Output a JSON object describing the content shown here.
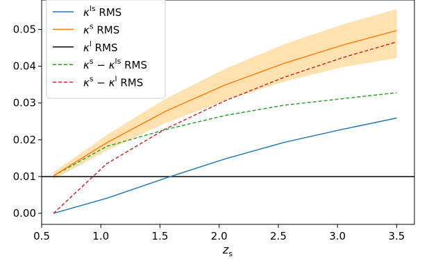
{
  "chart_data": {
    "type": "line",
    "xlabel": "z_s",
    "ylabel": "",
    "xlim": [
      0.5,
      3.65
    ],
    "ylim": [
      -0.003,
      0.058
    ],
    "xticks": [
      "0.5",
      "1.0",
      "1.5",
      "2.0",
      "2.5",
      "3.0",
      "3.5"
    ],
    "yticks": [
      "0.00",
      "0.01",
      "0.02",
      "0.03",
      "0.04",
      "0.05"
    ],
    "legend_position": "top-left",
    "grid": false,
    "x": [
      0.6,
      1.05,
      1.55,
      2.05,
      2.55,
      3.05,
      3.5
    ],
    "series": [
      {
        "name": "κ^ls RMS",
        "color": "#1f77b4",
        "style": "solid",
        "values": [
          0.0,
          0.0041,
          0.0096,
          0.0148,
          0.0193,
          0.0229,
          0.0259
        ]
      },
      {
        "name": "κ^s RMS",
        "color": "#ff7f0e",
        "style": "solid",
        "values": [
          0.0102,
          0.0192,
          0.0278,
          0.0349,
          0.0408,
          0.0458,
          0.0497
        ],
        "band_lower": [
          0.0092,
          0.0171,
          0.0246,
          0.0307,
          0.0358,
          0.0398,
          0.0422
        ],
        "band_upper": [
          0.0112,
          0.0213,
          0.0312,
          0.0393,
          0.046,
          0.0514,
          0.0555
        ]
      },
      {
        "name": "κ^l RMS",
        "color": "#000000",
        "style": "solid",
        "hline": 0.01
      },
      {
        "name": "κ^s − κ^ls RMS",
        "color": "#2ca02c",
        "style": "dashed",
        "values": [
          0.0102,
          0.0182,
          0.0228,
          0.0266,
          0.0294,
          0.0312,
          0.0328
        ]
      },
      {
        "name": "κ^s − κ^l RMS",
        "color": "#d62728",
        "style": "dashed",
        "values": [
          0.0,
          0.0135,
          0.023,
          0.0306,
          0.037,
          0.0424,
          0.0466
        ]
      }
    ]
  }
}
